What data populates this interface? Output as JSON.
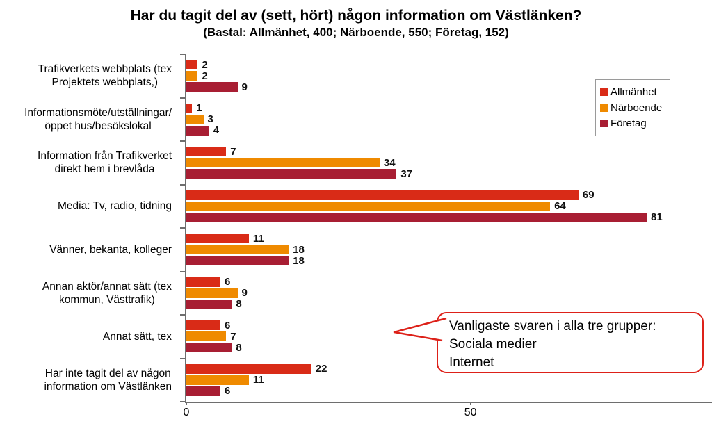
{
  "title": "Har du tagit del av (sett, hört) någon information om Västlänken?",
  "subtitle": "(Bastal: Allmänhet, 400; Närboende, 550; Företag, 152)",
  "chart_data": {
    "type": "bar",
    "orientation": "horizontal",
    "title": "Har du tagit del av (sett, hört) någon information om Västlänken?",
    "subtitle": "(Bastal: Allmänhet, 400; Närboende, 550; Företag, 152)",
    "categories": [
      "Trafikverkets webbplats (tex\nProjektets webbplats,)",
      "Informationsmöte/utställningar/\nöppet hus/besökslokal",
      "Information från Trafikverket\ndirekt hem i brevlåda",
      "Media: Tv, radio, tidning",
      "Vänner, bekanta, kolleger",
      "Annan aktör/annat sätt (tex\nkommun, Västtrafik)",
      "Annat sätt, tex",
      "Har inte tagit del av någon\ninformation om Västlänken"
    ],
    "series": [
      {
        "name": "Allmänhet",
        "color": "#d92b17",
        "values": [
          2,
          1,
          7,
          69,
          11,
          6,
          6,
          22
        ]
      },
      {
        "name": "Närboende",
        "color": "#ef8a00",
        "values": [
          2,
          3,
          34,
          64,
          18,
          9,
          7,
          11
        ]
      },
      {
        "name": "Företag",
        "color": "#a81e33",
        "values": [
          9,
          4,
          37,
          81,
          18,
          8,
          8,
          6
        ]
      }
    ],
    "xlabel": "",
    "ylabel": "",
    "xlim": [
      0,
      92.5
    ],
    "x_ticks": [
      0,
      50
    ],
    "grid": false,
    "legend_position": "top-right"
  },
  "callout": {
    "lines": [
      "Vanligaste svaren i alla tre grupper:",
      "Sociala medier",
      "Internet"
    ],
    "border_color": "#dd2119"
  },
  "colors": {
    "axis": "#6e6e6e",
    "legend_border": "#9a9a9a",
    "value_label": "#111111"
  }
}
